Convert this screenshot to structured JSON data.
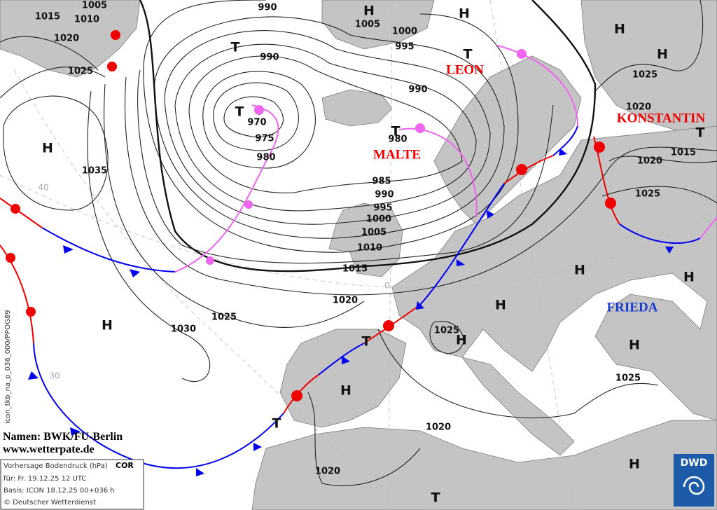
{
  "isobar_labels": [
    "1015",
    "1005",
    "1010",
    "1020",
    "1025",
    "990",
    "1005",
    "1000",
    "995",
    "990",
    "990",
    "970",
    "975",
    "980",
    "980",
    "985",
    "990",
    "995",
    "1000",
    "1005",
    "1010",
    "1015",
    "1020",
    "1025",
    "1030",
    "1035",
    "1025",
    "1020",
    "1015",
    "1020",
    "1025",
    "1025",
    "1025",
    "1020",
    "1020"
  ],
  "centers": [
    "H",
    "H",
    "H",
    "H",
    "T",
    "T",
    "T",
    "T",
    "T",
    "H",
    "H",
    "H",
    "H",
    "H",
    "H",
    "H",
    "T",
    "H",
    "T",
    "H",
    "T"
  ],
  "names": [
    "LEON",
    "MALTE",
    "KONSTANTIN",
    "FRIEDA"
  ],
  "grid_labels": [
    "40",
    "30",
    "0"
  ],
  "side_text": "icon_tkb_na_p_036_000/PPOG89",
  "credits": {
    "names": "Namen: BWK/FU-Berlin",
    "url": "www.wetterpate.de"
  },
  "info_box": {
    "title": "Vorhersage Bodendruck (hPa)",
    "flag": "COR",
    "valid": "für:  Fr. 19.12.25  12 UTC",
    "base": "Basis: ICON  18.12.25 00+036 h",
    "copyright": "© Deutscher Wetterdienst"
  },
  "logo": "DWD"
}
